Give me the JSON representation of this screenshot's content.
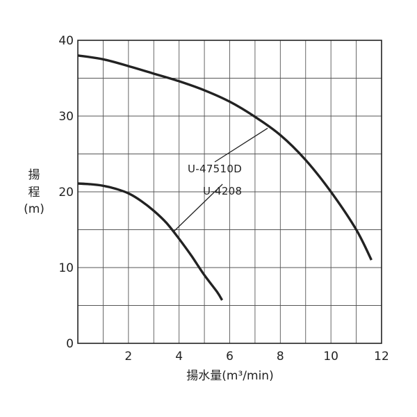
{
  "chart_data": {
    "type": "line",
    "title": "",
    "xlabel": "揚水量(m³/min)",
    "ylabel_lines": [
      "揚",
      "程",
      "(m)"
    ],
    "xlim": [
      0,
      12
    ],
    "ylim": [
      0,
      40
    ],
    "x_grid_step": 1,
    "y_grid_step": 5,
    "x_tick_values": [
      2,
      4,
      6,
      8,
      10,
      12
    ],
    "x_tick_labels": [
      "2",
      "4",
      "6",
      "8",
      "10",
      "12"
    ],
    "y_tick_values": [
      0,
      10,
      20,
      30,
      40
    ],
    "y_tick_labels": [
      "0",
      "10",
      "20",
      "30",
      "40"
    ],
    "grid": true,
    "series": [
      {
        "name": "U-47510D",
        "x": [
          0,
          1,
          2,
          3,
          4,
          5,
          6,
          7,
          8,
          9,
          10,
          11,
          11.6
        ],
        "y": [
          38,
          37.5,
          36.6,
          35.6,
          34.6,
          33.4,
          31.9,
          29.9,
          27.5,
          24.2,
          20.0,
          15.0,
          11.0
        ],
        "label_anchor": [
          7.5,
          28.4
        ]
      },
      {
        "name": "U-4208",
        "x": [
          0,
          0.5,
          1,
          1.5,
          2,
          2.5,
          3,
          3.5,
          4,
          4.5,
          5,
          5.5,
          5.7
        ],
        "y": [
          21.1,
          21.0,
          20.8,
          20.4,
          19.8,
          18.8,
          17.5,
          15.9,
          13.8,
          11.5,
          9.0,
          6.8,
          5.7
        ],
        "label_anchor": [
          3.8,
          14.8
        ]
      }
    ]
  }
}
